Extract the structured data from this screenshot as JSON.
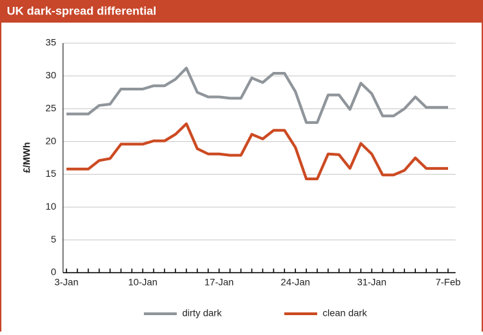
{
  "chart_data": {
    "type": "line",
    "title": "UK dark-spread differential",
    "y_label": "£/MWh",
    "categories": [
      "3-Jan",
      null,
      null,
      null,
      null,
      null,
      null,
      "10-Jan",
      null,
      null,
      null,
      null,
      null,
      null,
      "17-Jan",
      null,
      null,
      null,
      null,
      null,
      null,
      "24-Jan",
      null,
      null,
      null,
      null,
      null,
      null,
      "31-Jan",
      null,
      null,
      null,
      null,
      null,
      null,
      "7-Feb"
    ],
    "series": [
      {
        "name": "dirty dark",
        "color": "#8f959a",
        "values": [
          24.2,
          24.2,
          24.2,
          25.5,
          25.7,
          28,
          28,
          28,
          28.5,
          28.5,
          29.5,
          31.2,
          27.5,
          26.8,
          26.8,
          26.6,
          26.6,
          29.7,
          29,
          30.4,
          30.4,
          27.6,
          22.9,
          22.9,
          27.1,
          27.1,
          24.9,
          28.9,
          27.3,
          23.9,
          23.9,
          25,
          26.8,
          25.2,
          25.2,
          25.2
        ]
      },
      {
        "name": "clean dark",
        "color": "#cc4a22",
        "values": [
          15.8,
          15.8,
          15.8,
          17.1,
          17.4,
          19.6,
          19.6,
          19.6,
          20.1,
          20.1,
          21.1,
          22.7,
          18.9,
          18.1,
          18.1,
          17.9,
          17.9,
          21.1,
          20.4,
          21.7,
          21.7,
          19.1,
          14.3,
          14.3,
          18.1,
          18,
          15.9,
          19.7,
          18.1,
          14.9,
          14.9,
          15.6,
          17.5,
          15.9,
          15.9,
          15.9
        ]
      }
    ],
    "ylim": [
      0,
      35
    ],
    "yticks": [
      0,
      5,
      10,
      15,
      20,
      25,
      30,
      35
    ],
    "grid": true,
    "legend": "bottom"
  }
}
